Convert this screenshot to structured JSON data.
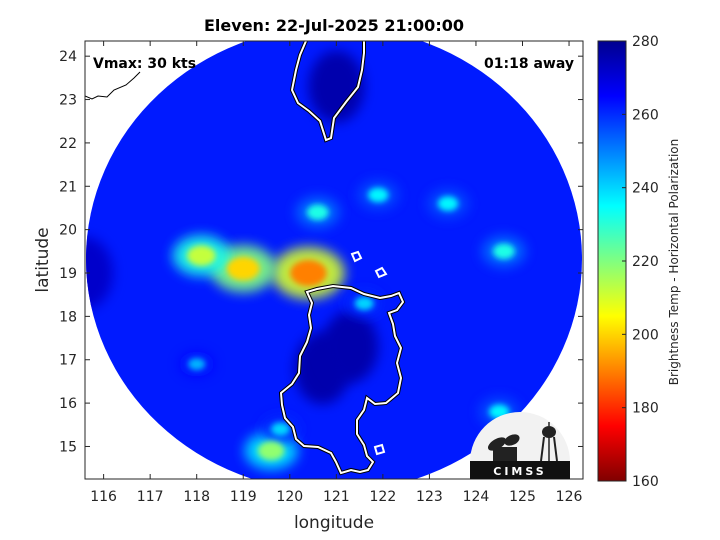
{
  "chart_data": {
    "type": "heatmap",
    "title": "Eleven: 22-Jul-2025 21:00:00",
    "xlabel": "longitude",
    "ylabel": "latitude",
    "xlim": [
      115.6,
      126.3
    ],
    "ylim": [
      14.25,
      24.35
    ],
    "xticks": [
      116,
      117,
      118,
      119,
      120,
      121,
      122,
      123,
      124,
      125,
      126
    ],
    "yticks": [
      15,
      16,
      17,
      18,
      19,
      20,
      21,
      22,
      23,
      24
    ],
    "grid": false,
    "colorbar": {
      "label": "Brightness Temp - Horizontal Polarization",
      "range": [
        160,
        280
      ],
      "ticks": [
        160,
        180,
        200,
        220,
        240,
        260,
        280
      ],
      "colormap": [
        "#800000",
        "#ff0000",
        "#ff8000",
        "#ffff00",
        "#80ff80",
        "#00ffff",
        "#0080ff",
        "#0000ff",
        "#00008f"
      ]
    },
    "annotations": {
      "vmax": "Vmax: 30 kts",
      "distance": "01:18 away"
    },
    "swath_center": [
      120.9,
      19.3
    ],
    "background_value": 262,
    "warm_features": [
      {
        "lon": 121.0,
        "lat": 23.3,
        "value": 276
      },
      {
        "lon": 120.7,
        "lat": 16.8,
        "value": 276
      },
      {
        "lon": 121.3,
        "lat": 17.3,
        "value": 276
      },
      {
        "lon": 115.6,
        "lat": 19.0,
        "value": 272
      }
    ],
    "cold_features": [
      {
        "lon": 120.4,
        "lat": 19.0,
        "value": 190
      },
      {
        "lon": 119.0,
        "lat": 19.1,
        "value": 200
      },
      {
        "lon": 118.1,
        "lat": 19.4,
        "value": 212
      },
      {
        "lon": 120.6,
        "lat": 20.4,
        "value": 232
      },
      {
        "lon": 121.9,
        "lat": 20.8,
        "value": 236
      },
      {
        "lon": 123.4,
        "lat": 20.6,
        "value": 236
      },
      {
        "lon": 124.6,
        "lat": 19.5,
        "value": 232
      },
      {
        "lon": 124.5,
        "lat": 15.8,
        "value": 236
      },
      {
        "lon": 119.6,
        "lat": 14.9,
        "value": 218
      },
      {
        "lon": 119.8,
        "lat": 15.4,
        "value": 240
      },
      {
        "lon": 118.0,
        "lat": 16.9,
        "value": 244
      },
      {
        "lon": 121.6,
        "lat": 18.3,
        "value": 240
      }
    ],
    "logo_text": "CIMSS"
  }
}
